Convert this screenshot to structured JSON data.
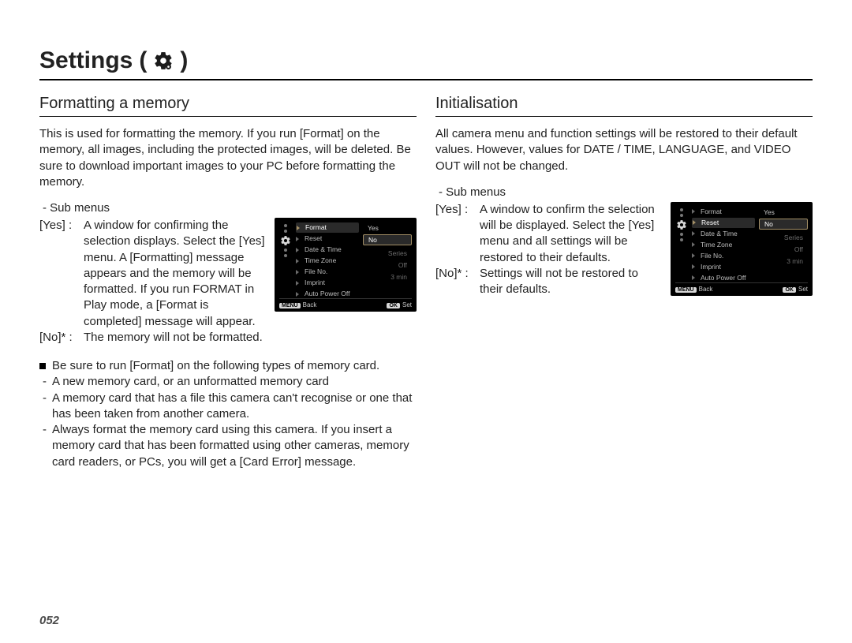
{
  "page": {
    "title": "Settings",
    "number": "052"
  },
  "icons": {
    "gear_color": "#1a1a1a"
  },
  "left": {
    "heading": "Formatting a memory",
    "intro": "This is used for formatting the memory. If you run [Format] on the memory, all images, including the protected images, will be deleted. Be sure to download important images to your PC before formatting the memory.",
    "sub_label": "- Sub menus",
    "yes_tag": "[Yes]",
    "yes_desc": "A window for confirming the selection displays. Select the [Yes] menu. A [Formatting] message appears and the memory will be formatted. If you run FORMAT in Play mode, a [Format is completed] message will appear.",
    "no_tag": "[No]*",
    "no_desc": "The memory will not be formatted.",
    "note_lead": "Be sure to run [Format] on the following types of memory card.",
    "note_items": [
      "A new memory card, or an unformatted memory card",
      "A memory card that has a file this camera can't recognise or one that has been taken from another camera.",
      "Always format the memory card using this camera. If you insert a memory card that has been formatted using other cameras, memory card readers, or PCs, you will get a [Card Error] message."
    ]
  },
  "right": {
    "heading": "Initialisation",
    "intro": "All camera menu and function settings will be restored to their default values. However, values for DATE / TIME, LANGUAGE, and VIDEO OUT will not be changed.",
    "sub_label": "- Sub menus",
    "yes_tag": "[Yes]",
    "yes_desc": "A window to confirm the selection will be displayed. Select the [Yes] menu and all settings will be restored to their defaults.",
    "no_tag": "[No]*",
    "no_desc": "Settings will not be restored to their defaults."
  },
  "cam_format": {
    "highlight_index": 0,
    "items": [
      {
        "label": "Format",
        "value": ""
      },
      {
        "label": "Reset",
        "value": ""
      },
      {
        "label": "Date & Time",
        "value": ""
      },
      {
        "label": "Time Zone",
        "value": ""
      },
      {
        "label": "File No.",
        "value": "Series"
      },
      {
        "label": "Imprint",
        "value": "Off"
      },
      {
        "label": "Auto Power Off",
        "value": "3 min"
      }
    ],
    "options": [
      "Yes",
      "No"
    ],
    "option_hl": 1,
    "footer": {
      "back_btn": "MENU",
      "back": "Back",
      "set_btn": "OK",
      "set": "Set"
    },
    "colors": {
      "bg": "#000000",
      "text": "#d8d8d8",
      "dim": "#bdbdbd",
      "accent": "#a38f66",
      "panel": "#2a2a2a"
    }
  },
  "cam_reset": {
    "highlight_index": 1,
    "items": [
      {
        "label": "Format",
        "value": ""
      },
      {
        "label": "Reset",
        "value": ""
      },
      {
        "label": "Date & Time",
        "value": ""
      },
      {
        "label": "Time Zone",
        "value": ""
      },
      {
        "label": "File No.",
        "value": "Series"
      },
      {
        "label": "Imprint",
        "value": "Off"
      },
      {
        "label": "Auto Power Off",
        "value": "3 min"
      }
    ],
    "options": [
      "Yes",
      "No"
    ],
    "option_hl": 1,
    "footer": {
      "back_btn": "MENU",
      "back": "Back",
      "set_btn": "OK",
      "set": "Set"
    },
    "colors": {
      "bg": "#000000",
      "text": "#d8d8d8",
      "dim": "#bdbdbd",
      "accent": "#a38f66",
      "panel": "#2a2a2a"
    }
  }
}
